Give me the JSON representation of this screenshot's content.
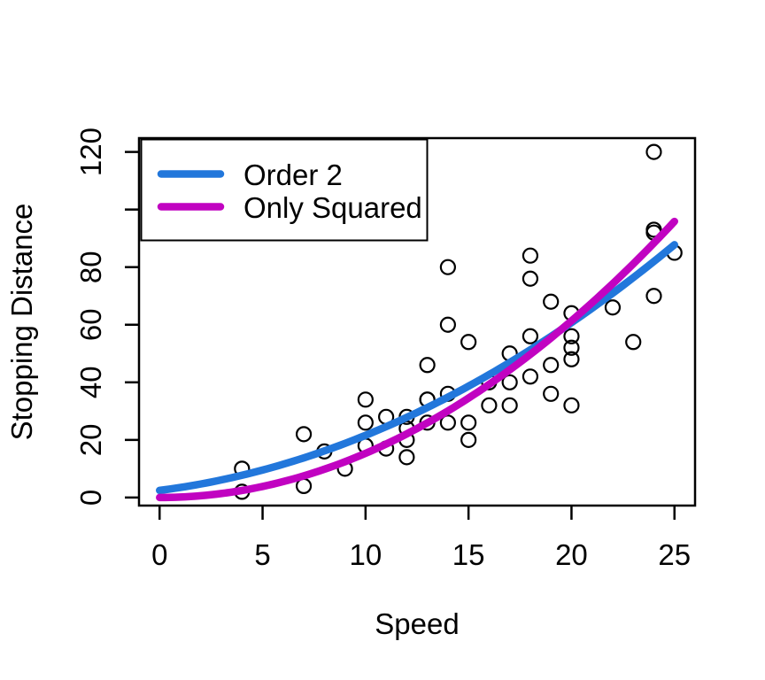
{
  "window": {
    "background": "#ffffff"
  },
  "chart_data": {
    "type": "scatter",
    "title": "",
    "xlabel": "Speed",
    "ylabel": "Stopping Distance",
    "grid": false,
    "frame_color": "#000000",
    "xlim": [
      -1,
      26
    ],
    "ylim": [
      -2.8,
      124.8
    ],
    "x_ticks": [
      0,
      5,
      10,
      15,
      20,
      25
    ],
    "x_tick_labels": [
      "0",
      "5",
      "10",
      "15",
      "20",
      "25"
    ],
    "y_ticks": [
      0,
      20,
      40,
      60,
      80,
      100,
      120
    ],
    "y_tick_labels": [
      "0",
      "20",
      "40",
      "60",
      "80",
      "",
      "120"
    ],
    "points": {
      "name": "cars-observations",
      "marker": "open-circle",
      "color": "#000000",
      "x": [
        4,
        4,
        7,
        7,
        8,
        9,
        10,
        10,
        10,
        11,
        11,
        12,
        12,
        12,
        12,
        13,
        13,
        13,
        13,
        14,
        14,
        14,
        14,
        15,
        15,
        15,
        16,
        16,
        17,
        17,
        17,
        18,
        18,
        18,
        18,
        19,
        19,
        19,
        20,
        20,
        20,
        20,
        20,
        22,
        23,
        24,
        24,
        24,
        24,
        25
      ],
      "y": [
        2,
        10,
        4,
        22,
        16,
        10,
        18,
        26,
        34,
        17,
        28,
        14,
        20,
        24,
        28,
        26,
        34,
        34,
        46,
        26,
        36,
        60,
        80,
        20,
        26,
        54,
        32,
        40,
        32,
        40,
        50,
        42,
        56,
        76,
        84,
        36,
        46,
        68,
        32,
        48,
        52,
        56,
        64,
        66,
        54,
        70,
        92,
        93,
        120,
        85
      ]
    },
    "series": [
      {
        "name": "Order 2",
        "type": "fitted-curve",
        "model": "polynomial",
        "coefficients": [
          2.47,
          0.9133,
          0.09996
        ],
        "x_range": [
          0,
          25
        ],
        "color": "#2277DB",
        "line_width": 8.5
      },
      {
        "name": "Only Squared",
        "type": "fitted-curve",
        "model": "polynomial",
        "coefficients": [
          0,
          0,
          0.1534
        ],
        "x_range": [
          0,
          25
        ],
        "color": "#C103C1",
        "line_width": 8.5
      }
    ],
    "legend": {
      "position": "topleft",
      "entries": [
        {
          "label": "Order 2",
          "color": "#2277DB"
        },
        {
          "label": "Only Squared",
          "color": "#C103C1"
        }
      ]
    }
  }
}
